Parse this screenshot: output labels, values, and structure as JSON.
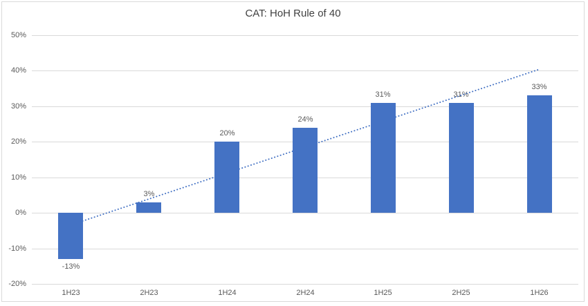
{
  "chart_data": {
    "type": "bar",
    "title": "CAT: HoH Rule of 40",
    "categories": [
      "1H23",
      "2H23",
      "1H24",
      "2H24",
      "1H25",
      "2H25",
      "1H26"
    ],
    "values": [
      -13,
      3,
      20,
      24,
      31,
      31,
      33
    ],
    "data_labels": [
      "-13%",
      "3%",
      "20%",
      "24%",
      "31%",
      "31%",
      "33%"
    ],
    "xlabel": "",
    "ylabel": "",
    "y_axis": {
      "min": -20,
      "max": 50,
      "step": 10,
      "tick_labels": [
        "50%",
        "40%",
        "30%",
        "20%",
        "10%",
        "0%",
        "-10%",
        "-20%"
      ]
    },
    "grid": true,
    "legend": "none",
    "bar_color": "#4472c4",
    "gridline_color": "#d9d9d9",
    "text_color": "#595959",
    "title_color": "#404040",
    "border_color": "#d9d9d9",
    "trendline": {
      "type": "linear",
      "style": "dotted",
      "color": "#4472c4",
      "start_value": -3.4,
      "end_value": 40.4
    }
  }
}
